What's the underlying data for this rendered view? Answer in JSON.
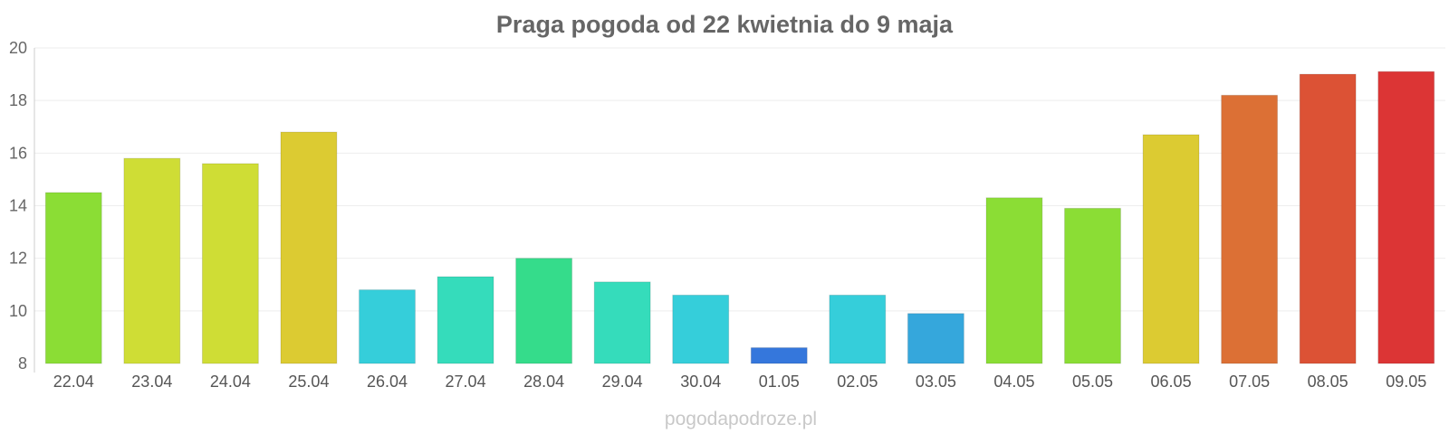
{
  "chart_data": {
    "type": "bar",
    "title": "Praga pogoda od 22 kwietnia do 9 maja",
    "xlabel": "",
    "ylabel": "",
    "ylim": [
      8,
      20
    ],
    "yticks": [
      "8",
      "10",
      "12",
      "14",
      "16",
      "18",
      "20"
    ],
    "grid": true,
    "legend": "none",
    "categories": [
      "22.04",
      "23.04",
      "24.04",
      "25.04",
      "26.04",
      "27.04",
      "28.04",
      "29.04",
      "30.04",
      "01.05",
      "02.05",
      "03.05",
      "04.05",
      "05.05",
      "06.05",
      "07.05",
      "08.05",
      "09.05"
    ],
    "values": [
      14.5,
      15.8,
      15.6,
      16.8,
      10.8,
      11.3,
      12.0,
      11.1,
      10.6,
      8.6,
      10.6,
      9.9,
      14.3,
      13.9,
      16.7,
      18.2,
      19.0,
      19.1
    ],
    "colors": [
      "#8bdd35",
      "#cfdd35",
      "#cfdd35",
      "#dccb32",
      "#35ceda",
      "#35dcbb",
      "#35dc8b",
      "#35dcbb",
      "#35ceda",
      "#3577dc",
      "#35ceda",
      "#35a7dc",
      "#8bdd35",
      "#8bdd35",
      "#dccb32",
      "#dc7035",
      "#dc5235",
      "#dc3535"
    ]
  },
  "watermark": "pogodapodroze.pl"
}
